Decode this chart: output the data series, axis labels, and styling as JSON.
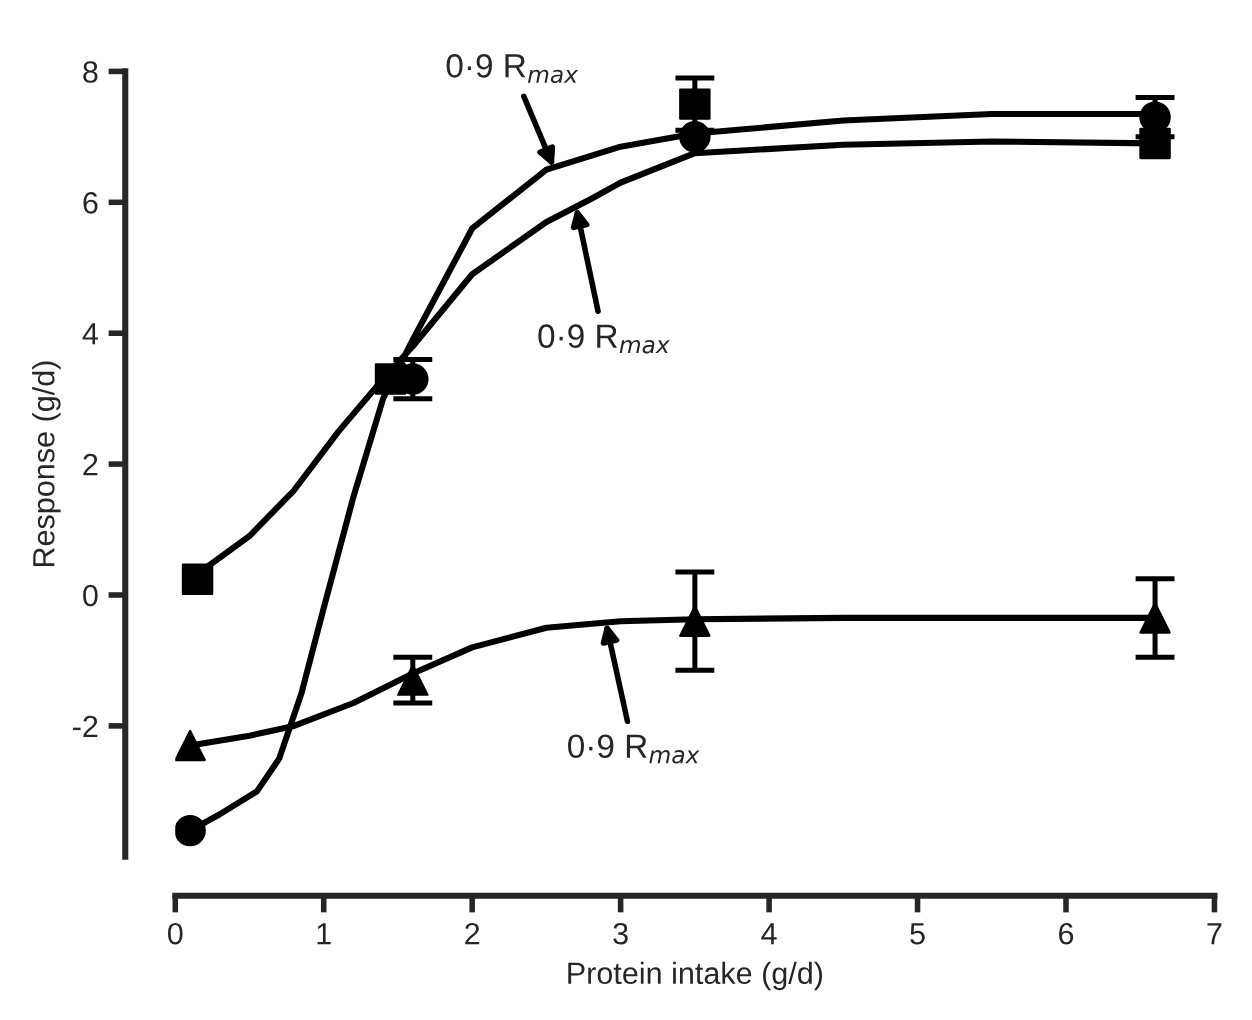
{
  "chart_data": {
    "type": "scatter",
    "xlabel": "Protein intake (g/d)",
    "ylabel": "Response (g/d)",
    "xlim": [
      0,
      7
    ],
    "xticks": [
      0,
      1,
      2,
      3,
      4,
      5,
      6,
      7
    ],
    "ylim": [
      -4,
      8
    ],
    "yticks": [
      -2,
      0,
      2,
      4,
      6,
      8
    ],
    "grid": false,
    "legend": false,
    "series": [
      {
        "marker": "square",
        "color": "#000000",
        "x": [
          0.15,
          1.45,
          3.5,
          6.6
        ],
        "values": [
          0.24,
          3.3,
          7.5,
          6.9
        ],
        "errors": [
          null,
          null,
          0.4,
          null
        ]
      },
      {
        "marker": "circle",
        "color": "#000000",
        "x": [
          0.1,
          1.6,
          3.5,
          6.6
        ],
        "values": [
          -3.6,
          3.3,
          7.0,
          7.3
        ],
        "errors": [
          null,
          0.3,
          null,
          0.3
        ]
      },
      {
        "marker": "triangle",
        "color": "#000000",
        "x": [
          0.1,
          1.6,
          3.5,
          6.6
        ],
        "values": [
          -2.3,
          -1.3,
          -0.4,
          -0.35
        ],
        "errors": [
          null,
          0.35,
          0.75,
          0.6
        ]
      },
      {
        "type": "line",
        "marker": "none",
        "color": "#000000",
        "x": [
          0.1,
          0.3,
          0.55,
          0.7,
          0.85,
          1.0,
          1.2,
          1.4,
          1.6,
          2.0,
          2.5,
          3.0,
          3.5,
          4.5,
          5.5,
          6.6
        ],
        "values": [
          -3.6,
          -3.35,
          -3.0,
          -2.5,
          -1.5,
          -0.2,
          1.5,
          3.0,
          3.9,
          5.6,
          6.5,
          6.85,
          7.05,
          7.25,
          7.35,
          7.35
        ]
      },
      {
        "type": "line",
        "marker": "none",
        "color": "#000000",
        "x": [
          0.1,
          0.5,
          0.8,
          1.1,
          1.4,
          1.6,
          2.0,
          2.5,
          2.8,
          3.0,
          3.5,
          4.5,
          5.5,
          6.6
        ],
        "values": [
          0.24,
          0.9,
          1.6,
          2.5,
          3.3,
          3.8,
          4.9,
          5.7,
          6.05,
          6.3,
          6.75,
          6.88,
          6.93,
          6.9
        ]
      },
      {
        "type": "line",
        "marker": "none",
        "color": "#000000",
        "x": [
          0.1,
          0.5,
          0.8,
          1.2,
          1.6,
          2.0,
          2.5,
          3.0,
          3.5,
          4.5,
          6.6
        ],
        "values": [
          -2.3,
          -2.15,
          -2.0,
          -1.65,
          -1.2,
          -0.8,
          -0.5,
          -0.4,
          -0.37,
          -0.35,
          -0.35
        ]
      }
    ],
    "annotations": [
      {
        "text": "0·9 R$_{max}$",
        "x": 2.55,
        "y": 6.53
      },
      {
        "text": "0·9 R$_{max}$",
        "x": 2.7,
        "y": 5.93
      },
      {
        "text": "0·9 R$_{max}$",
        "x": 2.9,
        "y": -0.42
      }
    ]
  }
}
